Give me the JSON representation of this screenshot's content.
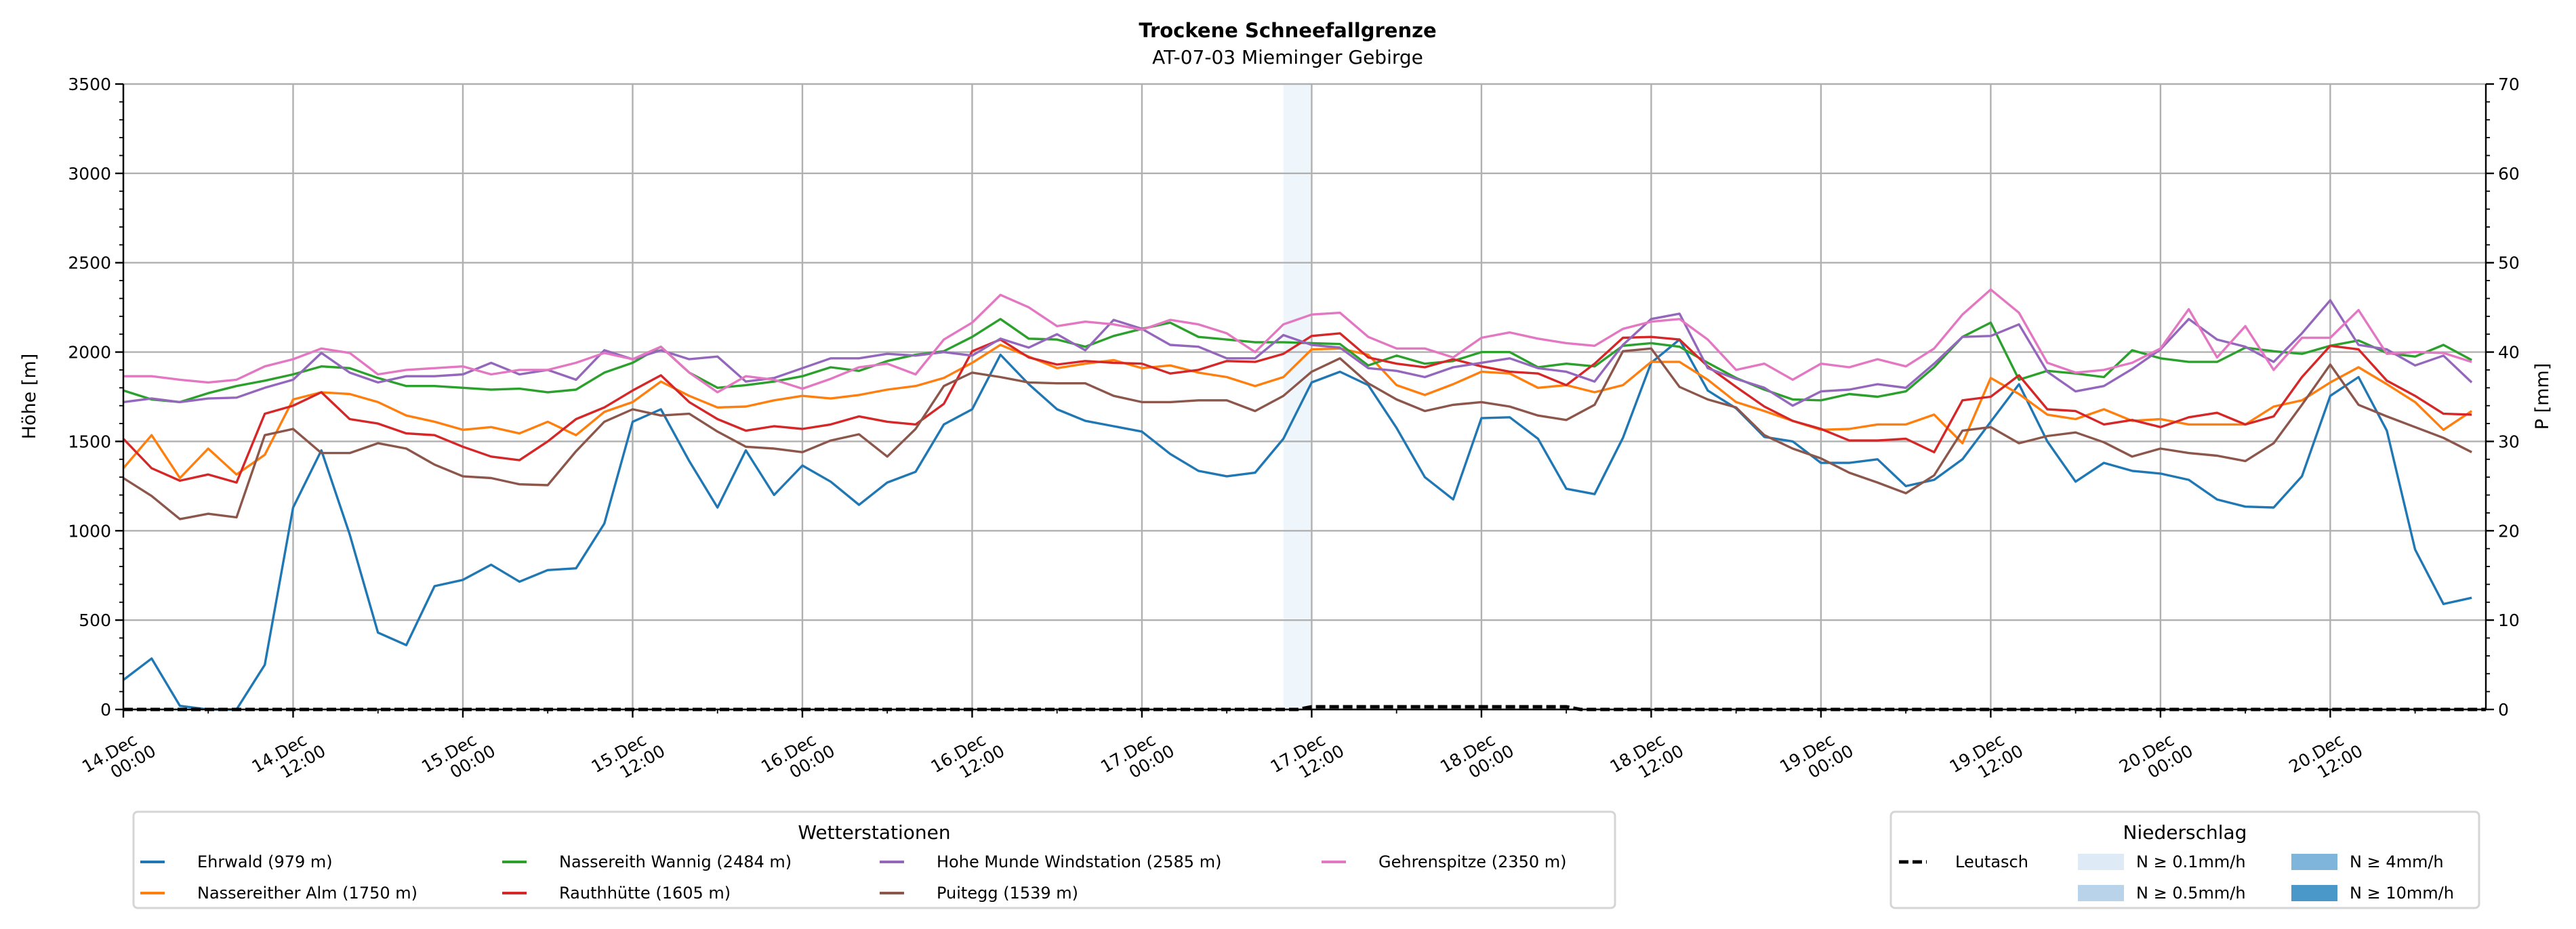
{
  "chart_data": {
    "type": "line",
    "title": "Trockene Schneefallgrenze",
    "subtitle": "AT-07-03 Mieminger Gebirge",
    "ylabel": "Höhe [m]",
    "ylabel_right": "P [mm]",
    "ylim": [
      0,
      3500
    ],
    "ylim_right": [
      0,
      70
    ],
    "yticks": [
      "0",
      "500",
      "1000",
      "1500",
      "2000",
      "2500",
      "3000",
      "3500"
    ],
    "yticks_right": [
      "0",
      "10",
      "20",
      "30",
      "40",
      "50",
      "60",
      "70"
    ],
    "x_unit": "hours since 14.Dec 00:00",
    "xlim_hours": [
      0,
      167
    ],
    "xticks": [
      {
        "date": "14.Dec",
        "time": "00:00"
      },
      {
        "date": "14.Dec",
        "time": "12:00"
      },
      {
        "date": "15.Dec",
        "time": "00:00"
      },
      {
        "date": "15.Dec",
        "time": "12:00"
      },
      {
        "date": "16.Dec",
        "time": "00:00"
      },
      {
        "date": "16.Dec",
        "time": "12:00"
      },
      {
        "date": "17.Dec",
        "time": "00:00"
      },
      {
        "date": "17.Dec",
        "time": "12:00"
      },
      {
        "date": "18.Dec",
        "time": "00:00"
      },
      {
        "date": "18.Dec",
        "time": "12:00"
      },
      {
        "date": "19.Dec",
        "time": "00:00"
      },
      {
        "date": "19.Dec",
        "time": "12:00"
      },
      {
        "date": "20.Dec",
        "time": "00:00"
      },
      {
        "date": "20.Dec",
        "time": "12:00"
      }
    ],
    "grid": true,
    "x_step_hours": 2,
    "series": [
      {
        "name": "Ehrwald (979 m)",
        "color": "#1f77b4",
        "values": [
          165,
          285,
          20,
          0,
          0,
          250,
          1130,
          1450,
          980,
          430,
          360,
          690,
          725,
          810,
          715,
          780,
          790,
          1040,
          1610,
          1680,
          1390,
          1130,
          1450,
          1200,
          1365,
          1275,
          1145,
          1270,
          1330,
          1595,
          1680,
          1985,
          1820,
          1680,
          1615,
          1585,
          1555,
          1430,
          1335,
          1305,
          1325,
          1515,
          1830,
          1890,
          1815,
          1575,
          1300,
          1175,
          1630,
          1635,
          1515,
          1235,
          1205,
          1520,
          1940,
          2070,
          1785,
          1685,
          1525,
          1500,
          1380,
          1380,
          1400,
          1250,
          1285,
          1400,
          1610,
          1820,
          1500,
          1275,
          1380,
          1335,
          1320,
          1285,
          1175,
          1135,
          1130,
          1305,
          1755,
          1860,
          1560,
          895,
          590,
          625
        ]
      },
      {
        "name": "Nassereither Alm (1750 m)",
        "color": "#ff7f0e",
        "values": [
          1350,
          1535,
          1295,
          1460,
          1315,
          1425,
          1735,
          1775,
          1765,
          1720,
          1645,
          1610,
          1565,
          1580,
          1545,
          1610,
          1535,
          1665,
          1720,
          1835,
          1755,
          1690,
          1695,
          1730,
          1755,
          1740,
          1760,
          1790,
          1810,
          1855,
          1940,
          2040,
          1975,
          1910,
          1935,
          1955,
          1910,
          1925,
          1885,
          1860,
          1810,
          1860,
          2015,
          2020,
          1985,
          1815,
          1760,
          1820,
          1890,
          1880,
          1800,
          1815,
          1775,
          1815,
          1945,
          1945,
          1845,
          1720,
          1670,
          1615,
          1565,
          1570,
          1595,
          1595,
          1650,
          1490,
          1855,
          1765,
          1650,
          1625,
          1680,
          1615,
          1625,
          1595,
          1595,
          1595,
          1695,
          1730,
          1830,
          1915,
          1820,
          1720,
          1565,
          1670
        ]
      },
      {
        "name": "Nassereith Wannig (2484 m)",
        "color": "#2ca02c",
        "values": [
          1785,
          1735,
          1720,
          1770,
          1810,
          1840,
          1875,
          1920,
          1910,
          1855,
          1810,
          1810,
          1800,
          1790,
          1795,
          1775,
          1790,
          1885,
          1940,
          2030,
          1885,
          1800,
          1815,
          1835,
          1865,
          1915,
          1895,
          1950,
          1985,
          2005,
          2085,
          2185,
          2075,
          2070,
          2030,
          2090,
          2130,
          2165,
          2085,
          2070,
          2055,
          2055,
          2050,
          2045,
          1925,
          1980,
          1935,
          1950,
          2000,
          2000,
          1915,
          1935,
          1920,
          2035,
          2050,
          2030,
          1940,
          1855,
          1790,
          1735,
          1730,
          1765,
          1750,
          1780,
          1915,
          2085,
          2165,
          1845,
          1895,
          1880,
          1860,
          2010,
          1965,
          1945,
          1945,
          2025,
          2005,
          1990,
          2035,
          2065,
          1995,
          1975,
          2040,
          1955
        ]
      },
      {
        "name": "Rauthhütte (1605 m)",
        "color": "#d62728",
        "values": [
          1515,
          1350,
          1280,
          1315,
          1270,
          1655,
          1700,
          1775,
          1625,
          1600,
          1545,
          1535,
          1470,
          1415,
          1395,
          1500,
          1625,
          1690,
          1785,
          1870,
          1720,
          1625,
          1560,
          1585,
          1570,
          1595,
          1640,
          1610,
          1595,
          1710,
          2005,
          2070,
          1970,
          1930,
          1950,
          1940,
          1935,
          1880,
          1900,
          1950,
          1945,
          1990,
          2090,
          2105,
          1970,
          1935,
          1915,
          1960,
          1920,
          1890,
          1880,
          1815,
          1935,
          2080,
          2085,
          2070,
          1920,
          1805,
          1695,
          1615,
          1570,
          1505,
          1505,
          1515,
          1440,
          1730,
          1750,
          1870,
          1680,
          1670,
          1595,
          1620,
          1580,
          1635,
          1660,
          1595,
          1640,
          1860,
          2035,
          2015,
          1840,
          1755,
          1655,
          1650
        ]
      },
      {
        "name": "Hohe Munde Windstation (2585 m)",
        "color": "#9467bd",
        "values": [
          1720,
          1740,
          1720,
          1740,
          1745,
          1800,
          1845,
          1995,
          1885,
          1830,
          1865,
          1865,
          1875,
          1940,
          1875,
          1900,
          1845,
          2010,
          1960,
          2010,
          1960,
          1975,
          1835,
          1855,
          1910,
          1965,
          1965,
          1990,
          1980,
          2000,
          1980,
          2075,
          2025,
          2100,
          2010,
          2180,
          2130,
          2040,
          2030,
          1965,
          1965,
          2095,
          2040,
          2025,
          1910,
          1895,
          1860,
          1915,
          1940,
          1965,
          1910,
          1890,
          1835,
          2040,
          2185,
          2215,
          1910,
          1850,
          1800,
          1700,
          1780,
          1790,
          1820,
          1800,
          1935,
          2085,
          2090,
          2155,
          1890,
          1780,
          1810,
          1905,
          2015,
          2185,
          2070,
          2030,
          1945,
          2105,
          2290,
          2040,
          2015,
          1925,
          1980,
          1830
        ]
      },
      {
        "name": "Puitegg (1539 m)",
        "color": "#8c564b",
        "values": [
          1295,
          1195,
          1065,
          1095,
          1075,
          1535,
          1570,
          1435,
          1435,
          1490,
          1460,
          1370,
          1305,
          1295,
          1260,
          1255,
          1445,
          1610,
          1680,
          1645,
          1655,
          1555,
          1470,
          1460,
          1440,
          1505,
          1540,
          1415,
          1570,
          1810,
          1885,
          1860,
          1830,
          1825,
          1825,
          1755,
          1720,
          1720,
          1730,
          1730,
          1670,
          1755,
          1890,
          1965,
          1825,
          1735,
          1670,
          1705,
          1720,
          1695,
          1645,
          1620,
          1705,
          2005,
          2020,
          1805,
          1735,
          1690,
          1535,
          1460,
          1405,
          1325,
          1270,
          1210,
          1310,
          1560,
          1580,
          1490,
          1530,
          1550,
          1495,
          1415,
          1460,
          1435,
          1420,
          1390,
          1490,
          1705,
          1930,
          1705,
          1640,
          1580,
          1520,
          1440
        ]
      },
      {
        "name": "Gehrenspitze (2350 m)",
        "color": "#e377c2",
        "values": [
          1865,
          1865,
          1845,
          1830,
          1845,
          1920,
          1960,
          2020,
          1995,
          1875,
          1900,
          1910,
          1920,
          1875,
          1900,
          1900,
          1940,
          1995,
          1960,
          2030,
          1885,
          1775,
          1865,
          1845,
          1795,
          1850,
          1915,
          1935,
          1875,
          2070,
          2165,
          2320,
          2250,
          2145,
          2170,
          2155,
          2125,
          2180,
          2155,
          2105,
          2000,
          2155,
          2210,
          2220,
          2085,
          2020,
          2020,
          1970,
          2080,
          2110,
          2075,
          2050,
          2035,
          2130,
          2170,
          2185,
          2070,
          1900,
          1935,
          1845,
          1935,
          1915,
          1960,
          1920,
          2020,
          2210,
          2350,
          2220,
          1940,
          1885,
          1900,
          1940,
          2020,
          2240,
          1970,
          2145,
          1900,
          2080,
          2080,
          2235,
          1990,
          2000,
          1995,
          1945
        ]
      }
    ],
    "precipitation": {
      "legend_title": "Niederschlag",
      "line": {
        "name": "Leutasch",
        "color": "#000000",
        "hours": [
          0,
          83,
          84,
          102,
          103,
          167
        ],
        "values_mm": [
          0,
          0,
          0.3,
          0.3,
          0,
          0
        ]
      },
      "levels": [
        {
          "label": "N ≥ 0.1mm/h",
          "color": "#deebf7"
        },
        {
          "label": "N ≥ 0.5mm/h",
          "color": "#b9d4ea"
        },
        {
          "label": "N ≥ 4mm/h",
          "color": "#7fb5da"
        },
        {
          "label": "N ≥ 10mm/h",
          "color": "#4a97c9"
        }
      ],
      "bands": [
        {
          "start_hour": 82,
          "end_hour": 84,
          "level": 0
        }
      ]
    },
    "legend_title": "Wetterstationen",
    "legend_placement": "bottom"
  }
}
